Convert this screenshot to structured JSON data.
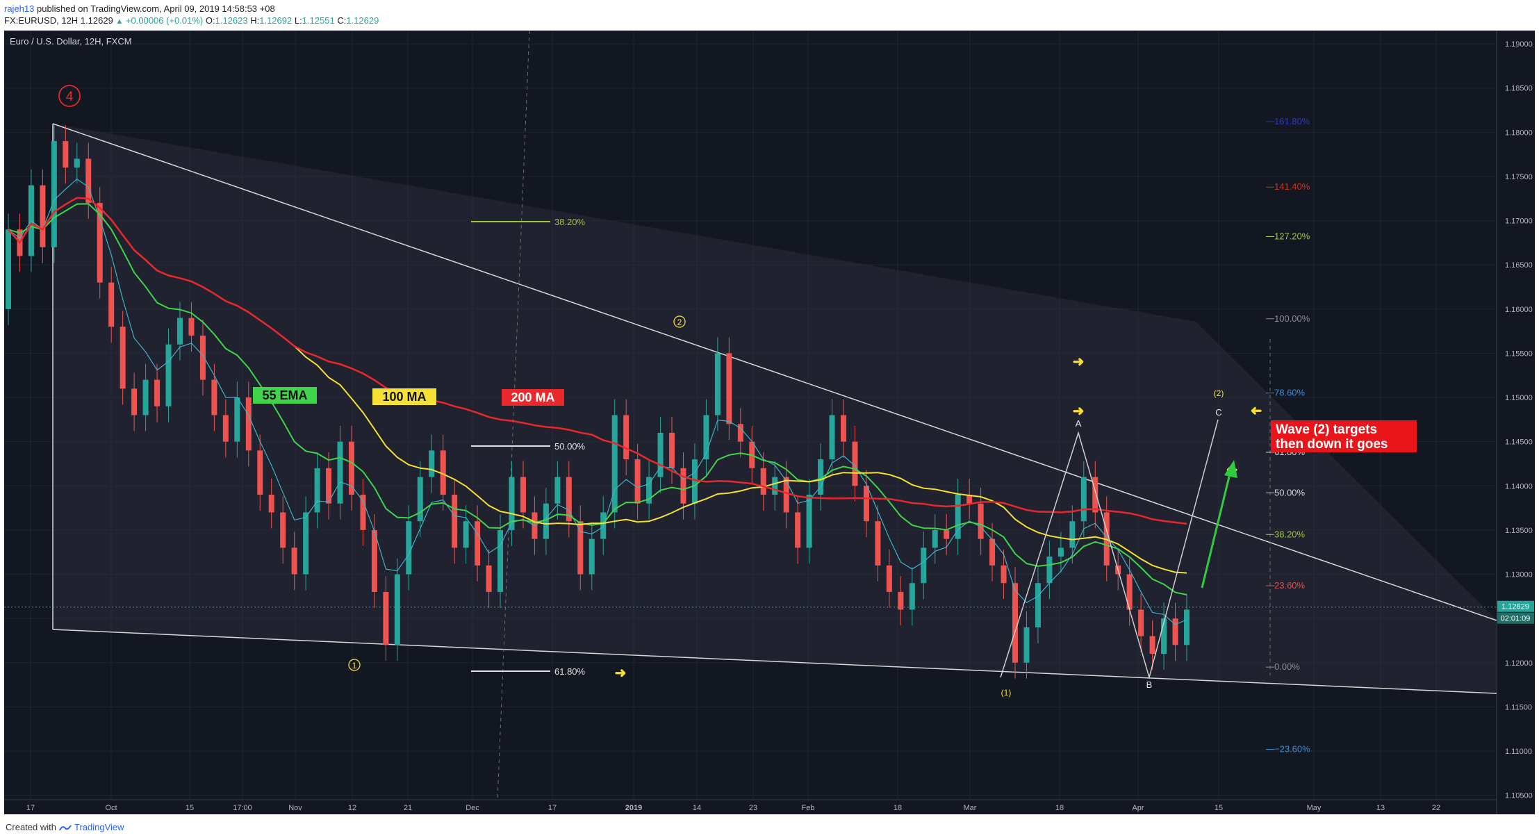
{
  "header": {
    "user": "rajeh13",
    "published": " published on TradingView.com, April 09, 2019 14:58:53 +08",
    "symbol_line": "FX:EURUSD, 12H 1.12629",
    "change": "+0.00006 (+0.01%)",
    "o_label": "O:",
    "o_val": "1.12623",
    "h_label": "H:",
    "h_val": "1.12692",
    "l_label": "L:",
    "l_val": "1.12551",
    "c_label": "C:",
    "c_val": "1.12629"
  },
  "footer": {
    "created_with": "Created with",
    "brand": "TradingView"
  },
  "colors": {
    "bg": "#131722",
    "up": "#26a69a",
    "down": "#ef5350",
    "ema55": "#3fd44a",
    "ma100": "#f5e133",
    "ma200": "#e8282b",
    "ema_fast": "#3db3c9"
  },
  "chart_data": {
    "type": "candlestick",
    "title": "Euro / U.S. Dollar, 12H, FXCM",
    "xlabel": "",
    "ylabel": "",
    "ylim": [
      1.1045,
      1.1915
    ],
    "y_ticks": [
      "1.19000",
      "1.18500",
      "1.18000",
      "1.17500",
      "1.17000",
      "1.16500",
      "1.16000",
      "1.15500",
      "1.15000",
      "1.14500",
      "1.14000",
      "1.13500",
      "1.13000",
      "1.12500",
      "1.12000",
      "1.11500",
      "1.11000",
      "1.10500"
    ],
    "x_ticks": [
      "17",
      "Oct",
      "15",
      "17:00",
      "Nov",
      "12",
      "21",
      "Dec",
      "17",
      "2019",
      "14",
      "23",
      "Feb",
      "18",
      "Mar",
      "18",
      "Apr",
      "15",
      "May",
      "13",
      "22"
    ],
    "last_price": "1.12629",
    "countdown": "02:01:09",
    "candles_approx": [
      [
        0,
        1.16,
        1.169
      ],
      [
        1,
        1.169,
        1.166
      ],
      [
        2,
        1.166,
        1.174
      ],
      [
        3,
        1.174,
        1.167
      ],
      [
        4,
        1.167,
        1.179
      ],
      [
        5,
        1.179,
        1.176
      ],
      [
        6,
        1.176,
        1.177
      ],
      [
        7,
        1.177,
        1.172
      ],
      [
        8,
        1.172,
        1.163
      ],
      [
        9,
        1.163,
        1.158
      ],
      [
        10,
        1.158,
        1.151
      ],
      [
        11,
        1.151,
        1.148
      ],
      [
        12,
        1.148,
        1.152
      ],
      [
        13,
        1.152,
        1.149
      ],
      [
        14,
        1.149,
        1.156
      ],
      [
        15,
        1.156,
        1.159
      ],
      [
        16,
        1.159,
        1.157
      ],
      [
        17,
        1.157,
        1.152
      ],
      [
        18,
        1.152,
        1.148
      ],
      [
        19,
        1.148,
        1.145
      ],
      [
        20,
        1.145,
        1.15
      ],
      [
        21,
        1.15,
        1.144
      ],
      [
        22,
        1.144,
        1.139
      ],
      [
        23,
        1.139,
        1.137
      ],
      [
        24,
        1.137,
        1.133
      ],
      [
        25,
        1.133,
        1.13
      ],
      [
        26,
        1.13,
        1.137
      ],
      [
        27,
        1.137,
        1.142
      ],
      [
        28,
        1.142,
        1.138
      ],
      [
        29,
        1.138,
        1.145
      ],
      [
        30,
        1.145,
        1.139
      ],
      [
        31,
        1.139,
        1.135
      ],
      [
        32,
        1.135,
        1.128
      ],
      [
        33,
        1.128,
        1.122
      ],
      [
        34,
        1.122,
        1.13
      ],
      [
        35,
        1.13,
        1.136
      ],
      [
        36,
        1.136,
        1.141
      ],
      [
        37,
        1.141,
        1.144
      ],
      [
        38,
        1.144,
        1.139
      ],
      [
        39,
        1.139,
        1.133
      ],
      [
        40,
        1.133,
        1.136
      ],
      [
        41,
        1.136,
        1.131
      ],
      [
        42,
        1.131,
        1.128
      ],
      [
        43,
        1.128,
        1.135
      ],
      [
        44,
        1.135,
        1.141
      ],
      [
        45,
        1.141,
        1.137
      ],
      [
        46,
        1.137,
        1.134
      ],
      [
        47,
        1.134,
        1.138
      ],
      [
        48,
        1.138,
        1.141
      ],
      [
        49,
        1.141,
        1.136
      ],
      [
        50,
        1.136,
        1.13
      ],
      [
        51,
        1.13,
        1.134
      ],
      [
        52,
        1.134,
        1.137
      ],
      [
        53,
        1.137,
        1.148
      ],
      [
        54,
        1.148,
        1.143
      ],
      [
        55,
        1.143,
        1.138
      ],
      [
        56,
        1.138,
        1.141
      ],
      [
        57,
        1.141,
        1.146
      ],
      [
        58,
        1.146,
        1.142
      ],
      [
        59,
        1.142,
        1.138
      ],
      [
        60,
        1.138,
        1.143
      ],
      [
        61,
        1.143,
        1.148
      ],
      [
        62,
        1.148,
        1.155
      ],
      [
        63,
        1.155,
        1.147
      ],
      [
        64,
        1.147,
        1.145
      ],
      [
        65,
        1.145,
        1.142
      ],
      [
        66,
        1.142,
        1.139
      ],
      [
        67,
        1.139,
        1.141
      ],
      [
        68,
        1.141,
        1.137
      ],
      [
        69,
        1.137,
        1.133
      ],
      [
        70,
        1.133,
        1.139
      ],
      [
        71,
        1.139,
        1.143
      ],
      [
        72,
        1.143,
        1.148
      ],
      [
        73,
        1.148,
        1.145
      ],
      [
        74,
        1.145,
        1.14
      ],
      [
        75,
        1.14,
        1.136
      ],
      [
        76,
        1.136,
        1.131
      ],
      [
        77,
        1.131,
        1.128
      ],
      [
        78,
        1.128,
        1.126
      ],
      [
        79,
        1.126,
        1.129
      ],
      [
        80,
        1.129,
        1.133
      ],
      [
        81,
        1.133,
        1.135
      ],
      [
        82,
        1.135,
        1.134
      ],
      [
        83,
        1.134,
        1.139
      ],
      [
        84,
        1.139,
        1.138
      ],
      [
        85,
        1.138,
        1.134
      ],
      [
        86,
        1.134,
        1.131
      ],
      [
        87,
        1.131,
        1.129
      ],
      [
        88,
        1.129,
        1.12
      ],
      [
        89,
        1.12,
        1.124
      ],
      [
        90,
        1.124,
        1.129
      ],
      [
        91,
        1.129,
        1.132
      ],
      [
        92,
        1.132,
        1.133
      ],
      [
        93,
        1.133,
        1.136
      ],
      [
        94,
        1.136,
        1.141
      ],
      [
        95,
        1.141,
        1.137
      ],
      [
        96,
        1.137,
        1.131
      ],
      [
        97,
        1.131,
        1.13
      ],
      [
        98,
        1.13,
        1.126
      ],
      [
        99,
        1.126,
        1.123
      ],
      [
        100,
        1.123,
        1.121
      ],
      [
        101,
        1.121,
        1.125
      ],
      [
        102,
        1.125,
        1.122
      ],
      [
        103,
        1.122,
        1.126
      ]
    ],
    "indicators": [
      {
        "name": "55 EMA",
        "color": "#3fd44a",
        "end_value": 1.1279
      },
      {
        "name": "100 MA",
        "color": "#f5e133",
        "end_value": 1.1318
      },
      {
        "name": "200 MA",
        "color": "#e8282b",
        "end_value": 1.1356
      }
    ],
    "fib_left": [
      "38.20%",
      "50.00%",
      "61.80%"
    ],
    "fib_right": [
      {
        "label": "161.80%",
        "price": 1.1812,
        "color": "#2c3dbd"
      },
      {
        "label": "141.40%",
        "price": 1.1738,
        "color": "#c0392b"
      },
      {
        "label": "127.20%",
        "price": 1.1682,
        "color": "#9cc63a"
      },
      {
        "label": "100.00%",
        "price": 1.1589,
        "color": "#8a8d94"
      },
      {
        "label": "78.60%",
        "price": 1.1505,
        "color": "#3a8fd1"
      },
      {
        "label": "61.80%",
        "price": 1.1438,
        "color": "#d6d6d6"
      },
      {
        "label": "50.00%",
        "price": 1.1392,
        "color": "#d6d6d6"
      },
      {
        "label": "38.20%",
        "price": 1.1345,
        "color": "#9cc63a"
      },
      {
        "label": "23.60%",
        "price": 1.1287,
        "color": "#d9534f"
      },
      {
        "label": "0.00%",
        "price": 1.1195,
        "color": "#8a8d94"
      },
      {
        "label": "−23.60%",
        "price": 1.1102,
        "color": "#3a8fd1"
      }
    ],
    "wave_labels": [
      "4",
      "2",
      "1",
      "(1)",
      "(2)",
      "A",
      "B",
      "C"
    ],
    "annotations": [
      "Wave (2) targets",
      "then down it goes"
    ]
  }
}
